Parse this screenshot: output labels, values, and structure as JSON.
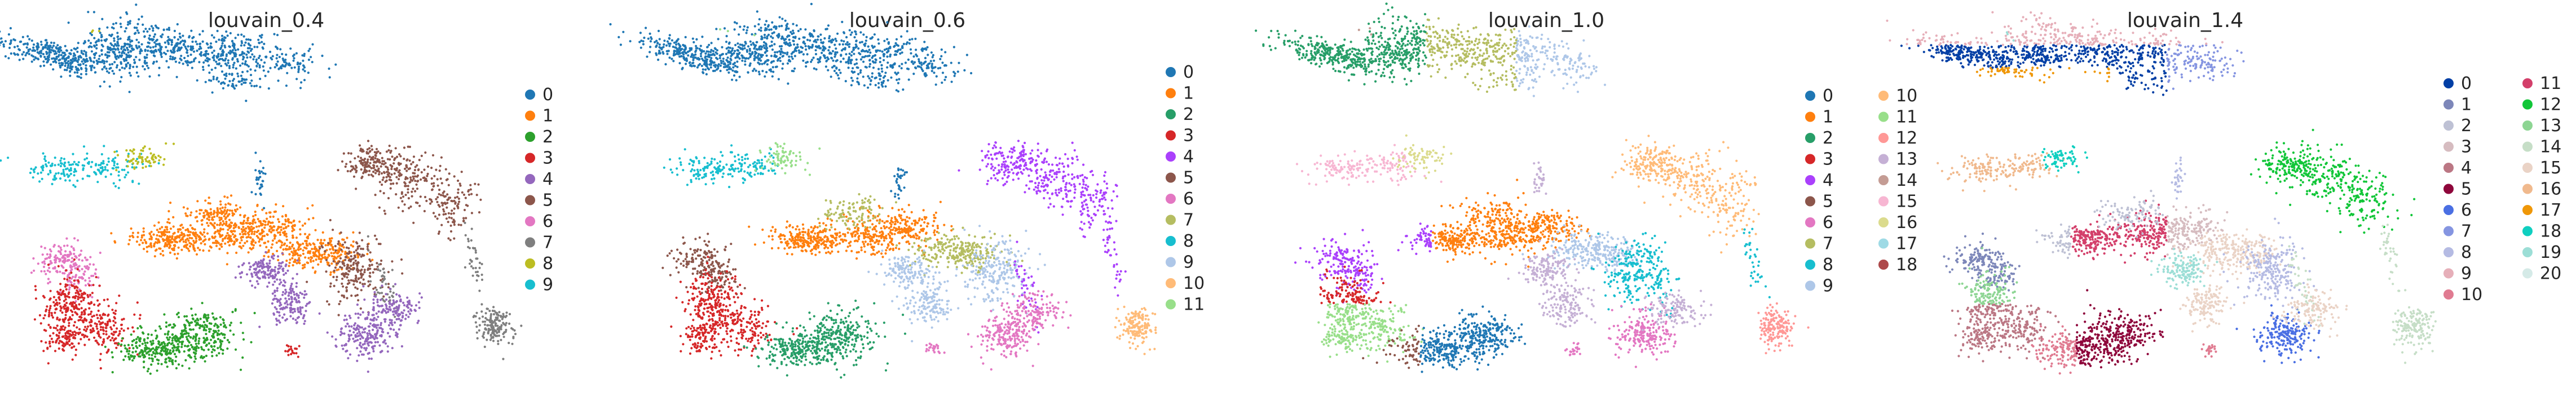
{
  "figure": {
    "panels": [
      {
        "title": "louvain_0.4",
        "legend": [
          "0",
          "1",
          "2",
          "3",
          "4",
          "5",
          "6",
          "7",
          "8",
          "9"
        ]
      },
      {
        "title": "louvain_0.6",
        "legend": [
          "0",
          "1",
          "2",
          "3",
          "4",
          "5",
          "6",
          "7",
          "8",
          "9",
          "10",
          "11"
        ]
      },
      {
        "title": "louvain_1.0",
        "legend": [
          "0",
          "1",
          "2",
          "3",
          "4",
          "5",
          "6",
          "7",
          "8",
          "9",
          "10",
          "11",
          "12",
          "13",
          "14",
          "15",
          "16",
          "17",
          "18"
        ]
      },
      {
        "title": "louvain_1.4",
        "legend": [
          "0",
          "1",
          "2",
          "3",
          "4",
          "5",
          "6",
          "7",
          "8",
          "9",
          "10",
          "11",
          "12",
          "13",
          "14",
          "15",
          "16",
          "17",
          "18",
          "19",
          "20"
        ]
      }
    ]
  },
  "chart_data": [
    {
      "type": "scatter",
      "title": "louvain_0.4",
      "xlabel": "",
      "ylabel": "",
      "axes": "off",
      "legend_position": "right",
      "series": [
        {
          "name": "0",
          "color": "#1f77b4"
        },
        {
          "name": "1",
          "color": "#ff7f0e"
        },
        {
          "name": "2",
          "color": "#2ca02c"
        },
        {
          "name": "3",
          "color": "#d62728"
        },
        {
          "name": "4",
          "color": "#9467bd"
        },
        {
          "name": "5",
          "color": "#8c564b"
        },
        {
          "name": "6",
          "color": "#e377c2"
        },
        {
          "name": "7",
          "color": "#7f7f7f"
        },
        {
          "name": "8",
          "color": "#bcbd22"
        },
        {
          "name": "9",
          "color": "#17becf"
        }
      ]
    },
    {
      "type": "scatter",
      "title": "louvain_0.6",
      "xlabel": "",
      "ylabel": "",
      "axes": "off",
      "legend_position": "right",
      "series": [
        {
          "name": "0",
          "color": "#1f77b4"
        },
        {
          "name": "1",
          "color": "#ff7f0e"
        },
        {
          "name": "2",
          "color": "#279e68"
        },
        {
          "name": "3",
          "color": "#d62728"
        },
        {
          "name": "4",
          "color": "#aa40fc"
        },
        {
          "name": "5",
          "color": "#8c564b"
        },
        {
          "name": "6",
          "color": "#e377c2"
        },
        {
          "name": "7",
          "color": "#b5bd61"
        },
        {
          "name": "8",
          "color": "#17becf"
        },
        {
          "name": "9",
          "color": "#aec7e8"
        },
        {
          "name": "10",
          "color": "#ffbb78"
        },
        {
          "name": "11",
          "color": "#98df8a"
        }
      ]
    },
    {
      "type": "scatter",
      "title": "louvain_1.0",
      "xlabel": "",
      "ylabel": "",
      "axes": "off",
      "legend_position": "right",
      "series": [
        {
          "name": "0",
          "color": "#1f77b4"
        },
        {
          "name": "1",
          "color": "#ff7f0e"
        },
        {
          "name": "2",
          "color": "#279e68"
        },
        {
          "name": "3",
          "color": "#d62728"
        },
        {
          "name": "4",
          "color": "#aa40fc"
        },
        {
          "name": "5",
          "color": "#8c564b"
        },
        {
          "name": "6",
          "color": "#e377c2"
        },
        {
          "name": "7",
          "color": "#b5bd61"
        },
        {
          "name": "8",
          "color": "#17becf"
        },
        {
          "name": "9",
          "color": "#aec7e8"
        },
        {
          "name": "10",
          "color": "#ffbb78"
        },
        {
          "name": "11",
          "color": "#98df8a"
        },
        {
          "name": "12",
          "color": "#ff9896"
        },
        {
          "name": "13",
          "color": "#c5b0d5"
        },
        {
          "name": "14",
          "color": "#c49c94"
        },
        {
          "name": "15",
          "color": "#f7b6d2"
        },
        {
          "name": "16",
          "color": "#dbdb8d"
        },
        {
          "name": "17",
          "color": "#9edae5"
        },
        {
          "name": "18",
          "color": "#ad494a"
        }
      ]
    },
    {
      "type": "scatter",
      "title": "louvain_1.4",
      "xlabel": "",
      "ylabel": "",
      "axes": "off",
      "legend_position": "right",
      "series": [
        {
          "name": "0",
          "color": "#023fa5"
        },
        {
          "name": "1",
          "color": "#7d87b9"
        },
        {
          "name": "2",
          "color": "#bec1d4"
        },
        {
          "name": "3",
          "color": "#d6bcc0"
        },
        {
          "name": "4",
          "color": "#bb7784"
        },
        {
          "name": "5",
          "color": "#8e063b"
        },
        {
          "name": "6",
          "color": "#4a6fe3"
        },
        {
          "name": "7",
          "color": "#8595e1"
        },
        {
          "name": "8",
          "color": "#b5bbe3"
        },
        {
          "name": "9",
          "color": "#e6afb9"
        },
        {
          "name": "10",
          "color": "#e07b91"
        },
        {
          "name": "11",
          "color": "#d33f6a"
        },
        {
          "name": "12",
          "color": "#11c638"
        },
        {
          "name": "13",
          "color": "#8dd593"
        },
        {
          "name": "14",
          "color": "#c6dec7"
        },
        {
          "name": "15",
          "color": "#ead3c6"
        },
        {
          "name": "16",
          "color": "#f0b98d"
        },
        {
          "name": "17",
          "color": "#ef9708"
        },
        {
          "name": "18",
          "color": "#0fcfc0"
        },
        {
          "name": "19",
          "color": "#9cded6"
        },
        {
          "name": "20",
          "color": "#d5eae7"
        }
      ]
    }
  ]
}
